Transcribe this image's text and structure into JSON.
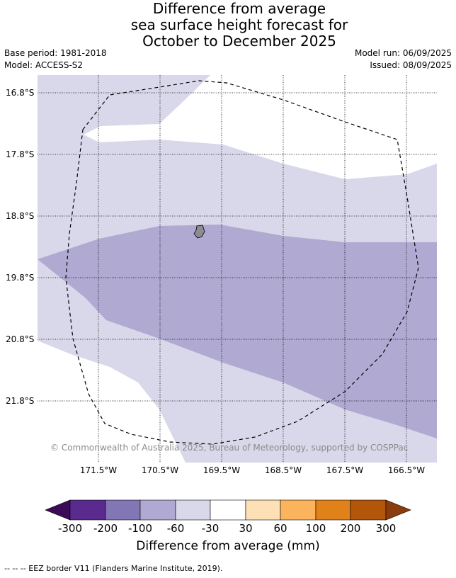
{
  "title_lines": [
    "Difference from average",
    "sea surface height forecast for",
    "October to December 2025"
  ],
  "meta": {
    "base_period": "Base period: 1981-2018",
    "model": "Model: ACCESS-S2",
    "model_run": "Model run: 06/09/2025",
    "issued": "Issued: 08/09/2025"
  },
  "map": {
    "lat_labels": [
      "16.8°S",
      "17.8°S",
      "18.8°S",
      "19.8°S",
      "20.8°S",
      "21.8°S"
    ],
    "lon_labels": [
      "171.5°W",
      "170.5°W",
      "169.5°W",
      "168.5°W",
      "167.5°W",
      "166.5°W"
    ],
    "copyright": "© Commonwealth of Australia 2025, Bureau of Meteorology, supported by COSPPac",
    "colors": {
      "band_-100_-60": "#b0a9d2",
      "band_-60_-30": "#d8d8ea",
      "band_-30_30": "#ffffff",
      "land": "#8c8c94",
      "grid": "#000000",
      "eez": "#000000"
    }
  },
  "colorbar": {
    "label": "Difference from average (mm)",
    "ticks": [
      "-300",
      "-200",
      "-100",
      "-60",
      "-30",
      "30",
      "60",
      "100",
      "200",
      "300"
    ],
    "under_color": "#3b0a58",
    "over_color": "#8a3c0c",
    "segment_colors": [
      "#5a2a8e",
      "#8276b4",
      "#b0a9d2",
      "#d8d8ea",
      "#ffffff",
      "#fde0b6",
      "#fbb35c",
      "#e1811a",
      "#b3560a"
    ]
  },
  "footnote": "--  --  -- EEZ border V11 (Flanders Marine Institute, 2019)."
}
